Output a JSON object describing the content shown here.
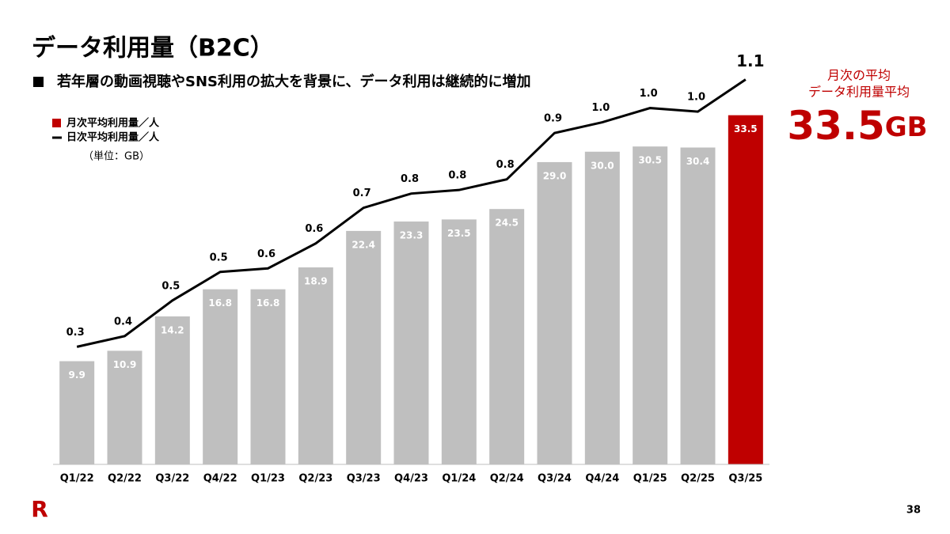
{
  "title": "データ利用量（B2C）",
  "subtitle": "若年層の動画視聴やSNS利用の拡大を背景に、データ利用は継続的に増加",
  "unit_note": "（単位：GB）",
  "callout": {
    "lines": [
      "月次の平均",
      "データ利用量平均"
    ],
    "value": 33.5,
    "unit": "GB",
    "color": "#bf0000"
  },
  "page_number": "38",
  "logo": "R",
  "chart_data": {
    "type": "bar",
    "categories": [
      "Q1/22",
      "Q2/22",
      "Q3/22",
      "Q4/22",
      "Q1/23",
      "Q2/23",
      "Q3/23",
      "Q4/23",
      "Q1/24",
      "Q2/24",
      "Q3/24",
      "Q4/24",
      "Q1/25",
      "Q2/25",
      "Q3/25"
    ],
    "ylim": [
      0,
      40
    ],
    "y2lim": [
      0,
      1.17
    ],
    "series": [
      {
        "name": "月次平均利用量／人",
        "type": "bar",
        "color": "#c00000",
        "colors": [
          "#bfbfbf",
          "#bfbfbf",
          "#bfbfbf",
          "#bfbfbf",
          "#bfbfbf",
          "#bfbfbf",
          "#bfbfbf",
          "#bfbfbf",
          "#bfbfbf",
          "#bfbfbf",
          "#bfbfbf",
          "#bfbfbf",
          "#bfbfbf",
          "#bfbfbf",
          "#bf0000"
        ],
        "values": [
          9.9,
          10.9,
          14.2,
          16.8,
          16.8,
          18.9,
          22.4,
          23.3,
          23.5,
          24.5,
          29.0,
          30.0,
          30.5,
          30.4,
          33.5
        ],
        "value_labels": [
          "9.9",
          "10.9",
          "14.2",
          "16.8",
          "16.8",
          "18.9",
          "22.4",
          "23.3",
          "23.5",
          "24.5",
          "29.0",
          "30.0",
          "30.5",
          "30.4",
          "33.5"
        ]
      },
      {
        "name": "日次平均利用量／人",
        "type": "line",
        "axis": "y2",
        "color": "#000000",
        "values": [
          0.33,
          0.36,
          0.46,
          0.54,
          0.55,
          0.62,
          0.72,
          0.76,
          0.77,
          0.8,
          0.93,
          0.96,
          1.0,
          0.99,
          1.08
        ],
        "value_labels": [
          "0.3",
          "0.4",
          "0.5",
          "0.5",
          "0.6",
          "0.6",
          "0.7",
          "0.8",
          "0.8",
          "0.8",
          "0.9",
          "1.0",
          "1.0",
          "1.0",
          "1.1"
        ]
      }
    ]
  }
}
